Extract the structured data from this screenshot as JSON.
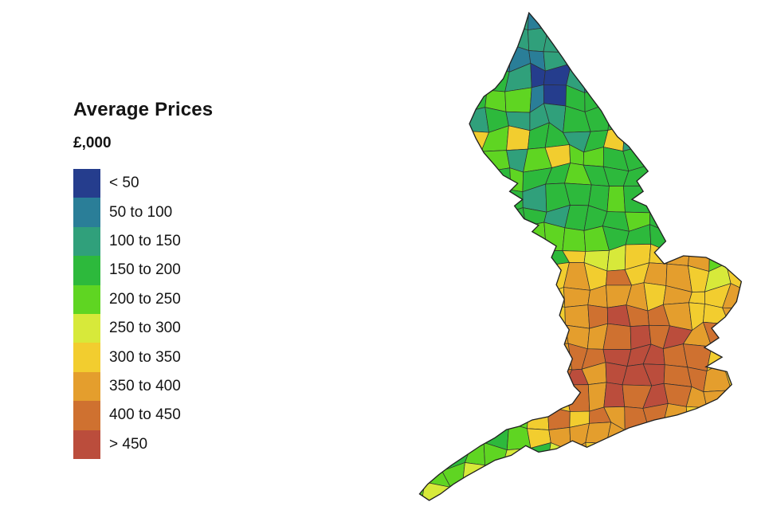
{
  "page": {
    "background": "#ffffff"
  },
  "legend": {
    "title": "Average Prices",
    "subtitle": "£,000",
    "items": [
      {
        "label": "< 50",
        "color": "#253d8d"
      },
      {
        "label": "50 to 100",
        "color": "#2a7e98"
      },
      {
        "label": "100 to 150",
        "color": "#30a07b"
      },
      {
        "label": "150 to 200",
        "color": "#2db93c"
      },
      {
        "label": "200 to 250",
        "color": "#5fd522"
      },
      {
        "label": "250 to 300",
        "color": "#d7e93a"
      },
      {
        "label": "300 to 350",
        "color": "#f2cd2f"
      },
      {
        "label": "350 to 400",
        "color": "#e49e2d"
      },
      {
        "label": "400 to 450",
        "color": "#cf7130"
      },
      {
        "label": "> 450",
        "color": "#bb4d3c"
      }
    ]
  },
  "map": {
    "name": "england-average-house-price-choropleth",
    "border_color": "#2e2e2e",
    "outline_color": "#1f1f1f"
  },
  "chart_data": {
    "type": "heatmap",
    "subtype": "choropleth-map",
    "title": "Average Prices",
    "units": "£,000",
    "region_shown": "England (districts)",
    "bins": [
      "< 50",
      "50 to 100",
      "100 to 150",
      "150 to 200",
      "200 to 250",
      "250 to 300",
      "300 to 350",
      "350 to 400",
      "400 to 450",
      "> 450"
    ],
    "bin_colors": [
      "#253d8d",
      "#2a7e98",
      "#30a07b",
      "#2db93c",
      "#5fd522",
      "#d7e93a",
      "#f2cd2f",
      "#e49e2d",
      "#cf7130",
      "#bb4d3c"
    ],
    "observed_pattern": [
      "Far north mostly 100-150 teal with one dark blue <50/50-100 district",
      "Northern and central England mostly 100-200 teal/green with scattered 200-300 patches",
      "East Anglia mostly 250-350 yellow",
      "London core > 450 dark red, surrounded by 350-450 orange ring",
      "South and south-west mostly 200-300 green/yellow-green",
      "Legend position: left, vertical color bar with labels"
    ]
  }
}
